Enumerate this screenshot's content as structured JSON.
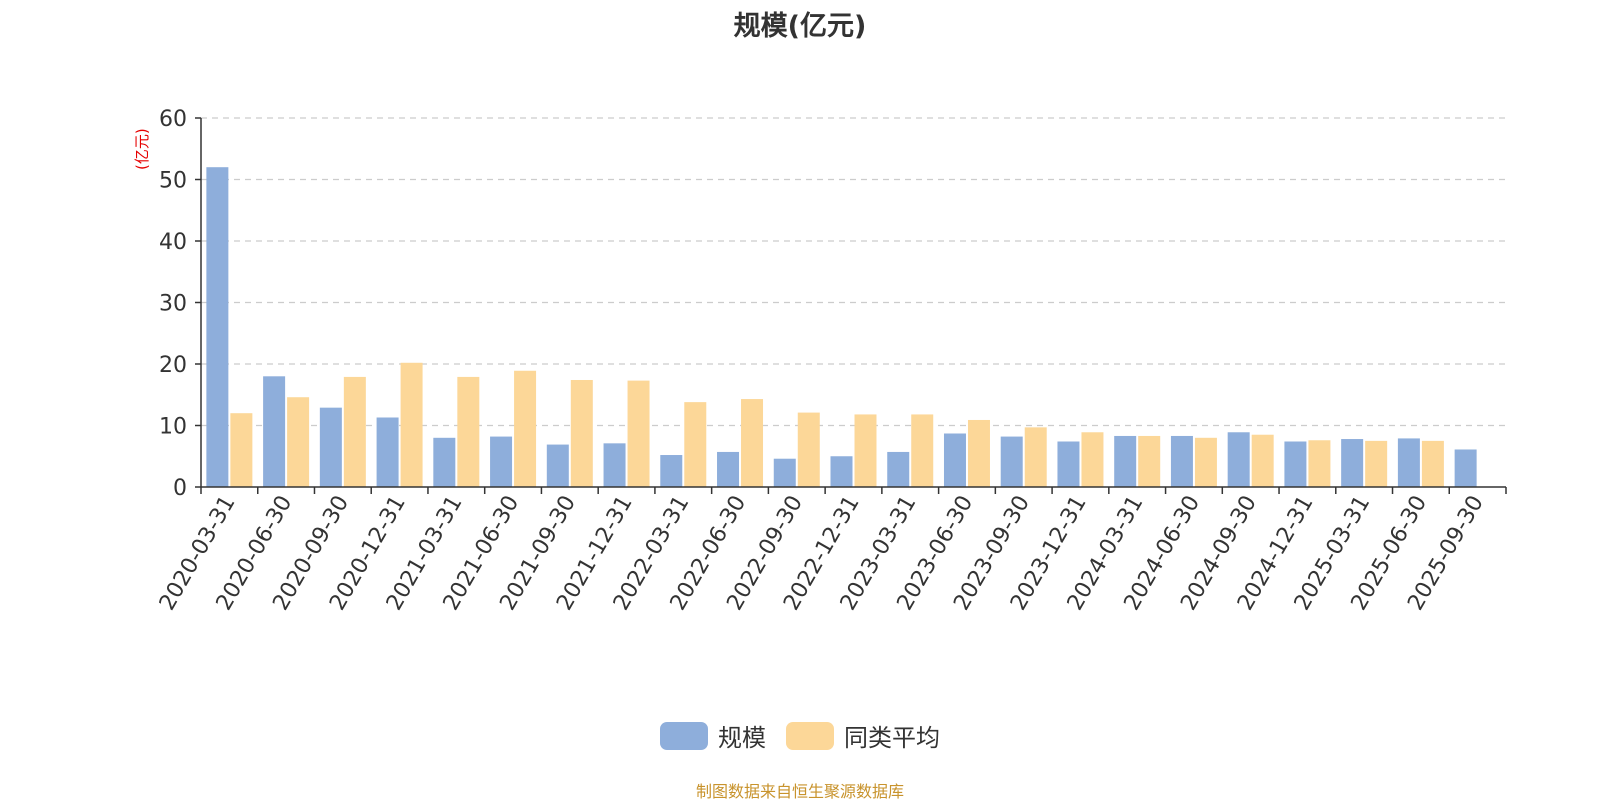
{
  "chart_data": {
    "type": "bar",
    "title": "规模(亿元)",
    "ylabel": "(亿元)",
    "xlabel": "",
    "ylim": [
      0,
      60
    ],
    "yticks": [
      0,
      10,
      20,
      30,
      40,
      50,
      60
    ],
    "categories": [
      "2020-03-31",
      "2020-06-30",
      "2020-09-30",
      "2020-12-31",
      "2021-03-31",
      "2021-06-30",
      "2021-09-30",
      "2021-12-31",
      "2022-03-31",
      "2022-06-30",
      "2022-09-30",
      "2022-12-31",
      "2023-03-31",
      "2023-06-30",
      "2023-09-30",
      "2023-12-31",
      "2024-03-31",
      "2024-06-30",
      "2024-09-30",
      "2024-12-31",
      "2025-03-31",
      "2025-06-30",
      "2025-09-30"
    ],
    "series": [
      {
        "name": "规模",
        "color": "#8eaedb",
        "values": [
          52.0,
          18.0,
          12.9,
          11.3,
          8.0,
          8.2,
          6.9,
          7.1,
          5.2,
          5.7,
          4.6,
          5.0,
          5.7,
          8.7,
          8.2,
          7.4,
          8.3,
          8.3,
          8.9,
          7.4,
          7.8,
          7.9,
          6.1
        ]
      },
      {
        "name": "同类平均",
        "color": "#fcd798",
        "values": [
          12.0,
          14.6,
          17.9,
          20.2,
          17.9,
          18.9,
          17.4,
          17.3,
          13.8,
          14.3,
          12.1,
          11.8,
          11.8,
          10.9,
          9.7,
          8.9,
          8.3,
          8.0,
          8.5,
          7.6,
          7.5,
          7.5,
          null
        ]
      }
    ],
    "grid": true,
    "legend_position": "bottom-center"
  },
  "source_note": "制图数据来自恒生聚源数据库"
}
